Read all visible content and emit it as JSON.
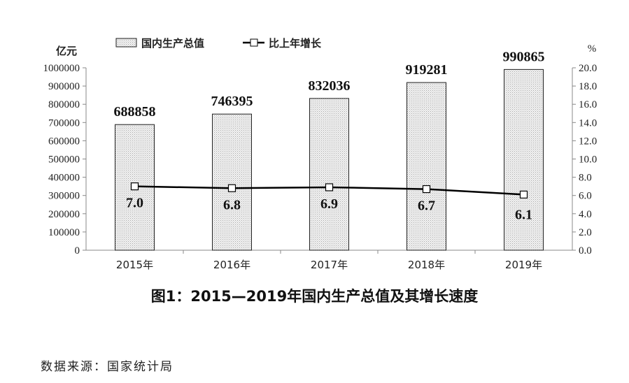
{
  "chart_data": {
    "type": "bar+line",
    "categories": [
      "2015年",
      "2016年",
      "2017年",
      "2018年",
      "2019年"
    ],
    "series": [
      {
        "name": "国内生产总值",
        "type": "bar",
        "axis": "left",
        "values": [
          688858,
          746395,
          832036,
          919281,
          990865
        ]
      },
      {
        "name": "比上年增长",
        "type": "line",
        "axis": "right",
        "values": [
          7.0,
          6.8,
          6.9,
          6.7,
          6.1
        ]
      }
    ],
    "left_axis": {
      "label": "亿元",
      "ylim": [
        0,
        1000000
      ],
      "ticks": [
        "0",
        "100000",
        "200000",
        "300000",
        "400000",
        "500000",
        "600000",
        "700000",
        "800000",
        "900000",
        "1000000"
      ]
    },
    "right_axis": {
      "label": "%",
      "ylim": [
        0,
        20
      ],
      "ticks": [
        "0.0",
        "2.0",
        "4.0",
        "6.0",
        "8.0",
        "10.0",
        "12.0",
        "14.0",
        "16.0",
        "18.0",
        "20.0"
      ]
    },
    "legend_position": "top",
    "grid": false,
    "title": "图1：2015—2019年国内生产总值及其增长速度",
    "colors": {
      "bar_fill": "#e4e4e4",
      "line": "#000000",
      "axis": "#888888"
    }
  },
  "source": "数据来源：国家统计局"
}
